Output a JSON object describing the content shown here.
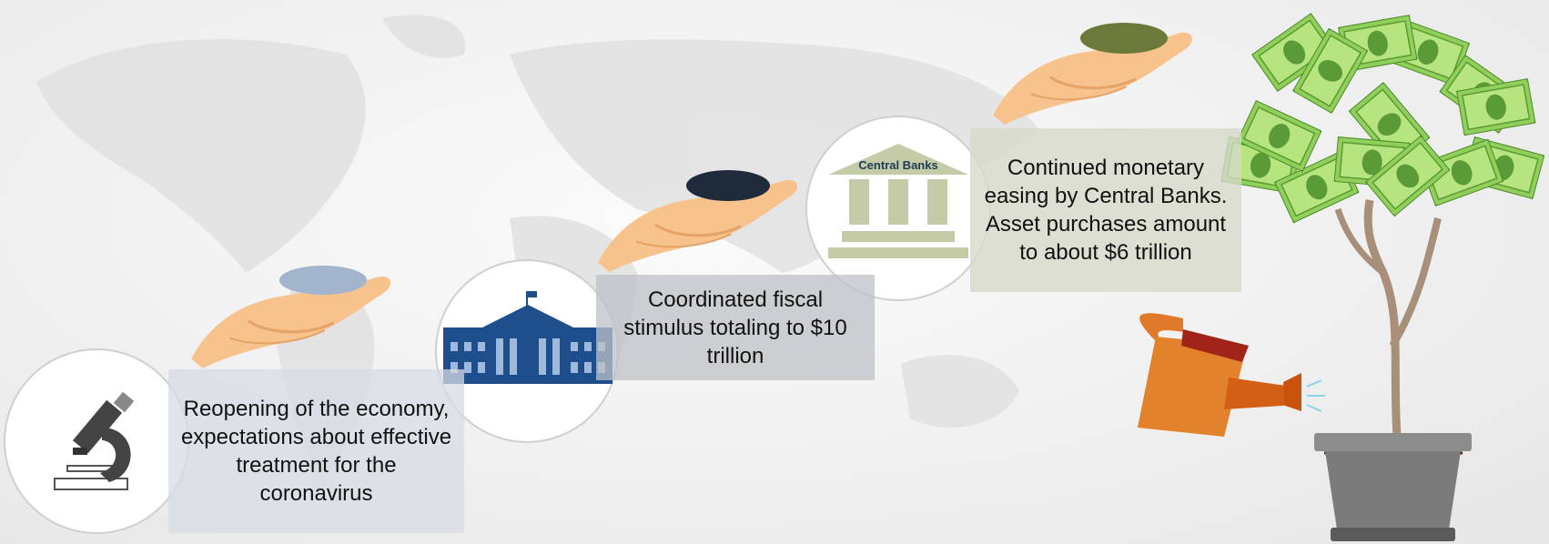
{
  "steps": [
    {
      "text": "Reopening of the economy, expectations about effective treatment for the coronavirus"
    },
    {
      "text": "Coordinated fiscal stimulus totaling to $10 trillion"
    },
    {
      "text": "Continued monetary easing by Central Banks. Asset purchases amount to about $6 trillion",
      "icon_label": "Central Banks"
    }
  ]
}
